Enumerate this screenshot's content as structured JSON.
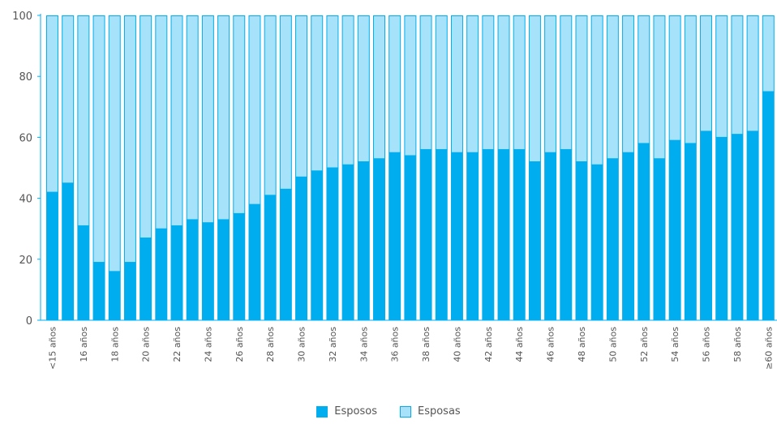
{
  "chart_data": {
    "type": "bar",
    "stacked": true,
    "categories": [
      "<15 años",
      "",
      "16 años",
      "",
      "18 años",
      "",
      "20 años",
      "",
      "22 años",
      "",
      "24 años",
      "",
      "26 años",
      "",
      "28 años",
      "",
      "30 años",
      "",
      "32 años",
      "",
      "34 años",
      "",
      "36 años",
      "",
      "38 años",
      "",
      "40 años",
      "",
      "42 años",
      "",
      "44 años",
      "",
      "46 años",
      "",
      "48 años",
      "",
      "50 años",
      "",
      "52 años",
      "",
      "54 años",
      "",
      "56 años",
      "",
      "58 años",
      "",
      "≥60 años"
    ],
    "series": [
      {
        "name": "Esposos",
        "color": "#00aeef",
        "values": [
          42,
          45,
          31,
          19,
          16,
          19,
          27,
          30,
          31,
          33,
          32,
          33,
          35,
          38,
          41,
          43,
          47,
          49,
          50,
          51,
          52,
          53,
          55,
          54,
          56,
          56,
          55,
          55,
          56,
          56,
          56,
          52,
          55,
          56,
          52,
          51,
          53,
          55,
          58,
          53,
          59,
          58,
          62,
          60,
          61,
          62,
          75
        ]
      },
      {
        "name": "Esposas",
        "color": "#a6e3fa",
        "border": "#00aeef",
        "values": [
          58,
          55,
          69,
          81,
          84,
          81,
          73,
          70,
          69,
          67,
          68,
          67,
          65,
          62,
          59,
          57,
          53,
          51,
          50,
          49,
          48,
          47,
          45,
          46,
          44,
          44,
          45,
          45,
          44,
          44,
          44,
          48,
          45,
          44,
          48,
          49,
          47,
          45,
          42,
          47,
          41,
          42,
          38,
          40,
          39,
          38,
          25
        ]
      }
    ],
    "ylim": [
      0,
      100
    ],
    "yticks": [
      0,
      20,
      40,
      60,
      80,
      100
    ],
    "title": "",
    "xlabel": "",
    "ylabel": "",
    "legend_position": "bottom-center",
    "grid": false
  }
}
